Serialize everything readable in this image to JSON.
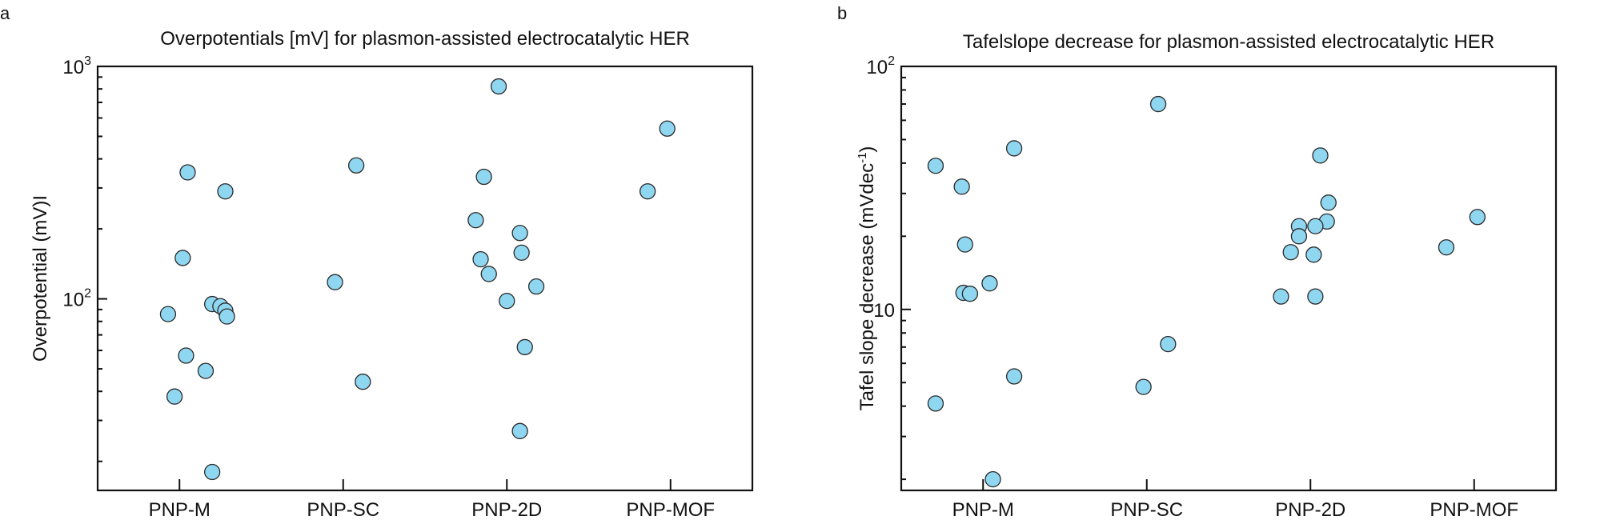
{
  "panels": [
    "a",
    "b"
  ],
  "colors": {
    "marker_fill": "#8fd6f0",
    "marker_edge": "#2a2a2a",
    "axis": "#111111"
  },
  "chart_data": [
    {
      "type": "scatter",
      "panel": "a",
      "title": "Overpotentials [mV] for plasmon-assisted electrocatalytic HER",
      "xlabel": "",
      "ylabel": "Overpotential (mV)I",
      "yscale": "log",
      "ylim": [
        15,
        1000
      ],
      "categories": [
        "PNP-M",
        "PNP-SC",
        "PNP-2D",
        "PNP-MOF"
      ],
      "yticks": [
        {
          "value": 100,
          "base": "10",
          "exp": "2"
        },
        {
          "value": 1000,
          "base": "10",
          "exp": "3"
        }
      ],
      "points": [
        {
          "cat": 0,
          "jitter": 0.05,
          "y": 350
        },
        {
          "cat": 0,
          "jitter": 0.28,
          "y": 290
        },
        {
          "cat": 0,
          "jitter": 0.02,
          "y": 150
        },
        {
          "cat": 0,
          "jitter": 0.2,
          "y": 95
        },
        {
          "cat": 0,
          "jitter": 0.25,
          "y": 93
        },
        {
          "cat": 0,
          "jitter": 0.28,
          "y": 89
        },
        {
          "cat": 0,
          "jitter": 0.29,
          "y": 84
        },
        {
          "cat": 0,
          "jitter": -0.07,
          "y": 86
        },
        {
          "cat": 0,
          "jitter": 0.04,
          "y": 57
        },
        {
          "cat": 0,
          "jitter": 0.16,
          "y": 49
        },
        {
          "cat": 0,
          "jitter": -0.03,
          "y": 38
        },
        {
          "cat": 0,
          "jitter": 0.2,
          "y": 18
        },
        {
          "cat": 1,
          "jitter": 0.08,
          "y": 375
        },
        {
          "cat": 1,
          "jitter": -0.05,
          "y": 118
        },
        {
          "cat": 1,
          "jitter": 0.12,
          "y": 44
        },
        {
          "cat": 2,
          "jitter": -0.05,
          "y": 820
        },
        {
          "cat": 2,
          "jitter": -0.14,
          "y": 335
        },
        {
          "cat": 2,
          "jitter": -0.19,
          "y": 218
        },
        {
          "cat": 2,
          "jitter": 0.08,
          "y": 192
        },
        {
          "cat": 2,
          "jitter": 0.09,
          "y": 158
        },
        {
          "cat": 2,
          "jitter": -0.16,
          "y": 148
        },
        {
          "cat": 2,
          "jitter": -0.11,
          "y": 128
        },
        {
          "cat": 2,
          "jitter": 0.18,
          "y": 113
        },
        {
          "cat": 2,
          "jitter": 0.0,
          "y": 98
        },
        {
          "cat": 2,
          "jitter": 0.11,
          "y": 62
        },
        {
          "cat": 2,
          "jitter": 0.08,
          "y": 27
        },
        {
          "cat": 3,
          "jitter": -0.14,
          "y": 290
        },
        {
          "cat": 3,
          "jitter": -0.02,
          "y": 540
        }
      ]
    },
    {
      "type": "scatter",
      "panel": "b",
      "title": "Tafelslope decrease for plasmon-assisted electrocatalytic HER",
      "xlabel": "",
      "ylabel": "Tafel slope decrease (mVdec",
      "ylabel_sup": "-1",
      "ylabel_end": ")",
      "yscale": "log",
      "ylim": [
        1.8,
        100
      ],
      "categories": [
        "PNP-M",
        "PNP-SC",
        "PNP-2D",
        "PNP-MOF"
      ],
      "yticks": [
        {
          "value": 10,
          "base": "10",
          "exp": ""
        },
        {
          "value": 100,
          "base": "10",
          "exp": "2"
        }
      ],
      "points": [
        {
          "cat": 0,
          "jitter": -0.29,
          "y": 39
        },
        {
          "cat": 0,
          "jitter": 0.19,
          "y": 46
        },
        {
          "cat": 0,
          "jitter": -0.13,
          "y": 32
        },
        {
          "cat": 0,
          "jitter": -0.11,
          "y": 18.5
        },
        {
          "cat": 0,
          "jitter": 0.04,
          "y": 12.8
        },
        {
          "cat": 0,
          "jitter": -0.12,
          "y": 11.7
        },
        {
          "cat": 0,
          "jitter": -0.08,
          "y": 11.6
        },
        {
          "cat": 0,
          "jitter": 0.19,
          "y": 5.3
        },
        {
          "cat": 0,
          "jitter": -0.29,
          "y": 4.1
        },
        {
          "cat": 0,
          "jitter": 0.06,
          "y": 2.0
        },
        {
          "cat": 1,
          "jitter": 0.07,
          "y": 70
        },
        {
          "cat": 1,
          "jitter": 0.13,
          "y": 7.2
        },
        {
          "cat": 1,
          "jitter": -0.02,
          "y": 4.8
        },
        {
          "cat": 2,
          "jitter": 0.06,
          "y": 43
        },
        {
          "cat": 2,
          "jitter": 0.11,
          "y": 27.5
        },
        {
          "cat": 2,
          "jitter": 0.1,
          "y": 23
        },
        {
          "cat": 2,
          "jitter": -0.07,
          "y": 22
        },
        {
          "cat": 2,
          "jitter": 0.03,
          "y": 22
        },
        {
          "cat": 2,
          "jitter": -0.07,
          "y": 20
        },
        {
          "cat": 2,
          "jitter": -0.12,
          "y": 17.2
        },
        {
          "cat": 2,
          "jitter": 0.02,
          "y": 16.8
        },
        {
          "cat": 2,
          "jitter": -0.18,
          "y": 11.3
        },
        {
          "cat": 2,
          "jitter": 0.03,
          "y": 11.3
        },
        {
          "cat": 3,
          "jitter": -0.17,
          "y": 18
        },
        {
          "cat": 3,
          "jitter": 0.02,
          "y": 24
        }
      ]
    }
  ]
}
